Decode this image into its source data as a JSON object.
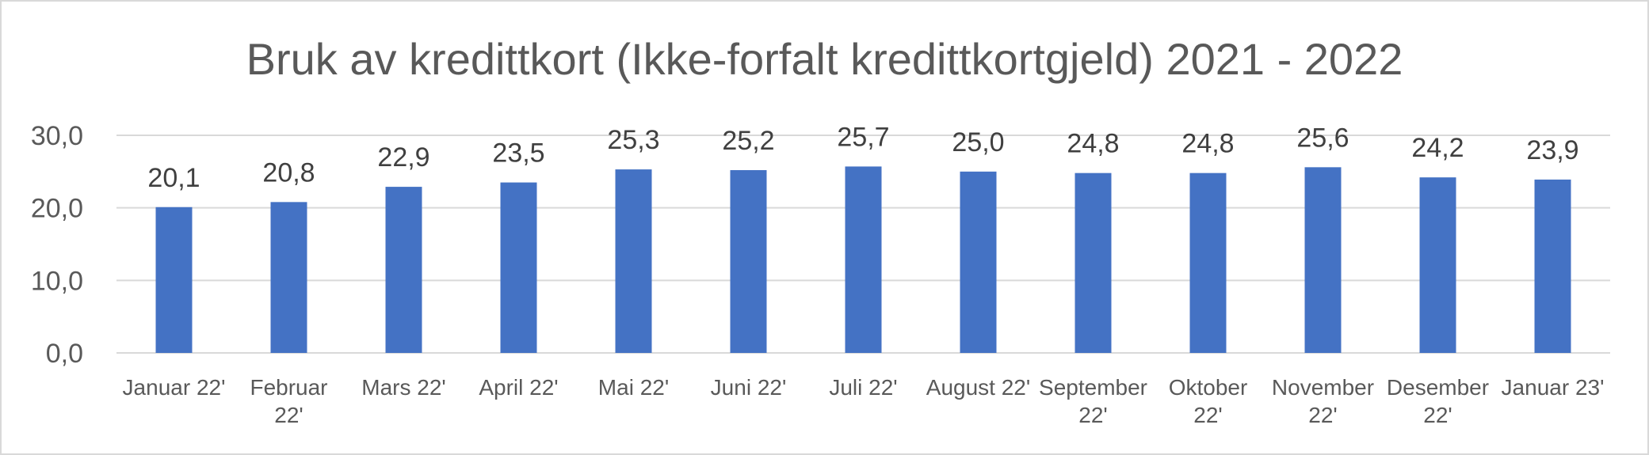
{
  "chart_data": {
    "type": "bar",
    "title": "Bruk av kredittkort (Ikke-forfalt kredittkortgjeld) 2021 - 2022",
    "categories": [
      [
        "Januar 22'"
      ],
      [
        "Februar",
        "22'"
      ],
      [
        "Mars 22'"
      ],
      [
        "April 22'"
      ],
      [
        "Mai 22'"
      ],
      [
        "Juni 22'"
      ],
      [
        "Juli 22'"
      ],
      [
        "August 22'"
      ],
      [
        "September",
        "22'"
      ],
      [
        "Oktober",
        "22'"
      ],
      [
        "November",
        "22'"
      ],
      [
        "Desember",
        "22'"
      ],
      [
        "Januar 23'"
      ]
    ],
    "values": [
      20.1,
      20.8,
      22.9,
      23.5,
      25.3,
      25.2,
      25.7,
      25.0,
      24.8,
      24.8,
      25.6,
      24.2,
      23.9
    ],
    "data_labels": [
      "20,1",
      "20,8",
      "22,9",
      "23,5",
      "25,3",
      "25,2",
      "25,7",
      "25,0",
      "24,8",
      "24,8",
      "25,6",
      "24,2",
      "23,9"
    ],
    "y_ticks": [
      0,
      10,
      20,
      30
    ],
    "y_tick_labels": [
      "0,0",
      "10,0",
      "20,0",
      "30,0"
    ],
    "ylim": [
      0,
      30
    ],
    "grid": true,
    "legend": "none",
    "bar_color": "#4472c4",
    "grid_color": "#d9d9d9"
  }
}
